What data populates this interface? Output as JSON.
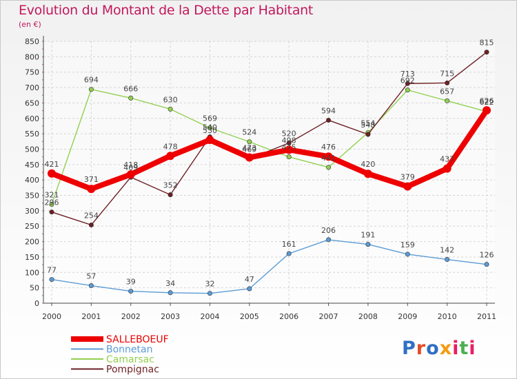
{
  "title": "Evolution du Montant de la Dette par Habitant",
  "subtitle": "(en €)",
  "logo": {
    "text": "Proxiti",
    "colors": [
      "#2f6fc4",
      "#e34c26",
      "#2f6fc4",
      "#f39c12",
      "#e91e63",
      "#4caf50",
      "#e91e63"
    ]
  },
  "chart_data": {
    "type": "line",
    "categories": [
      "2000",
      "2001",
      "2002",
      "2003",
      "2004",
      "2005",
      "2006",
      "2007",
      "2008",
      "2009",
      "2010",
      "2011"
    ],
    "ylim": [
      0,
      850
    ],
    "ytick_step": 50,
    "grid": true,
    "legend_position": "bottom-left",
    "series": [
      {
        "name": "Bonnetan",
        "color": "#5b9bd5",
        "values": [
          77,
          57,
          39,
          34,
          32,
          47,
          161,
          206,
          191,
          159,
          142,
          126
        ]
      },
      {
        "name": "Camarsac",
        "color": "#92d050",
        "values": [
          321,
          694,
          666,
          630,
          569,
          524,
          475,
          441,
          554,
          692,
          657,
          622
        ]
      },
      {
        "name": "Pompignac",
        "color": "#6d1f24",
        "values": [
          296,
          254,
          409,
          352,
          540,
          469,
          520,
          594,
          548,
          713,
          715,
          815
        ]
      },
      {
        "name": "SALLEBOEUF",
        "color": "#ee0000",
        "values": [
          421,
          371,
          418,
          478,
          530,
          473,
          498,
          476,
          420,
          379,
          437,
          626
        ]
      }
    ],
    "legend_order": [
      "SALLEBOEUF",
      "Bonnetan",
      "Camarsac",
      "Pompignac"
    ]
  }
}
